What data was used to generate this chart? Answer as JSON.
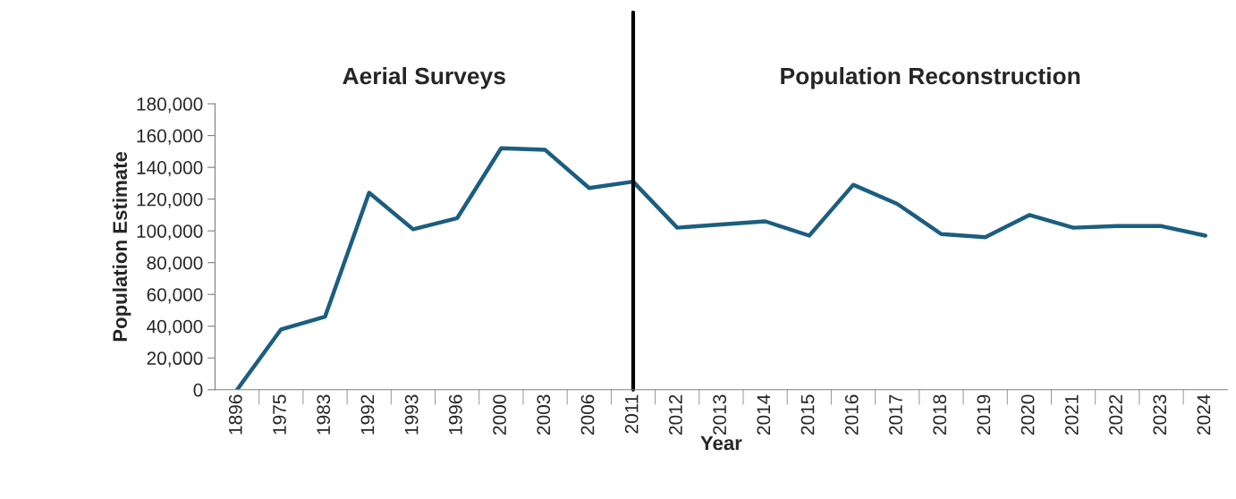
{
  "chart_data": {
    "type": "line",
    "xlabel": "Year",
    "ylabel": "Population Estimate",
    "categories": [
      "1896",
      "1975",
      "1983",
      "1992",
      "1993",
      "1996",
      "2000",
      "2003",
      "2006",
      "2011",
      "2012",
      "2013",
      "2014",
      "2015",
      "2016",
      "2017",
      "2018",
      "2019",
      "2020",
      "2021",
      "2022",
      "2023",
      "2024"
    ],
    "series": [
      {
        "color": "#1b5e80",
        "values": [
          0,
          38000,
          46000,
          124000,
          101000,
          108000,
          152000,
          151000,
          127000,
          131000,
          102000,
          104000,
          106000,
          97000,
          129000,
          117000,
          98000,
          96000,
          110000,
          102000,
          103000,
          103000,
          97000
        ]
      }
    ],
    "ylim": [
      0,
      180000
    ],
    "yticks": [
      {
        "value": 0,
        "label": "0"
      },
      {
        "value": 20000,
        "label": "20,000"
      },
      {
        "value": 40000,
        "label": "40,000"
      },
      {
        "value": 60000,
        "label": "60,000"
      },
      {
        "value": 80000,
        "label": "80,000"
      },
      {
        "value": 100000,
        "label": "100,000"
      },
      {
        "value": 120000,
        "label": "120,000"
      },
      {
        "value": 140000,
        "label": "140,000"
      },
      {
        "value": 160000,
        "label": "160,000"
      },
      {
        "value": 180000,
        "label": "180,000"
      }
    ],
    "ref_lines": [
      {
        "axis": "x",
        "value": "2011",
        "color": "#000000"
      }
    ],
    "annotations": [
      "Aerial Surveys",
      "Population Reconstruction"
    ],
    "grid": false,
    "legend": false,
    "marker": "none",
    "line_style": "solid"
  }
}
